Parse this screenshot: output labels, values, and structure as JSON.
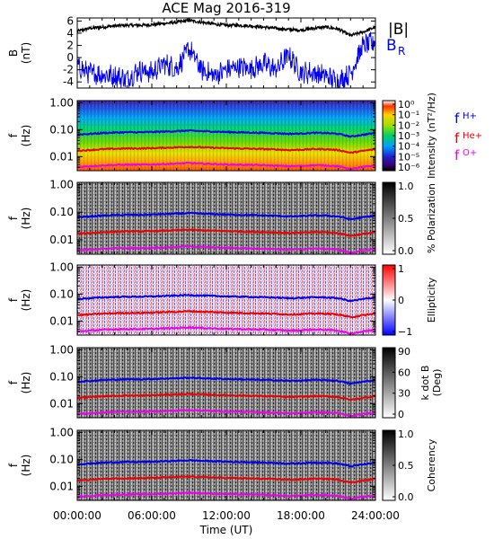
{
  "title": "ACE Mag 2016-319",
  "colors": {
    "blue": "#0000ee",
    "red": "#ee0000",
    "magenta": "#ee00ee",
    "black": "#000000"
  },
  "x_axis": {
    "label": "Time (UT)",
    "ticks": [
      "00:00:00",
      "06:00:00",
      "12:00:00",
      "18:00:00",
      "24:00:00"
    ],
    "tick_hours": [
      0,
      6,
      12,
      18,
      24
    ],
    "range_hours": [
      0,
      24
    ]
  },
  "legend_b": {
    "total": "|B|",
    "radial": "B",
    "radial_sub": "R"
  },
  "legend_f": [
    {
      "base": "f",
      "sub": "H+",
      "color": "#0000ee"
    },
    {
      "base": "f",
      "sub": "He+",
      "color": "#ee0000"
    },
    {
      "base": "f",
      "sub": "O+",
      "color": "#ee00ee"
    }
  ],
  "panels": [
    {
      "id": "b",
      "ylabel": "B",
      "yunit": "(nT)",
      "ytick_labels": [
        "6",
        "4",
        "2",
        "0",
        "-2",
        "-4"
      ],
      "ytick_values": [
        6,
        4,
        2,
        0,
        -2,
        -4
      ],
      "yrange": [
        -5,
        6.5
      ]
    },
    {
      "id": "intensity",
      "ylabel": "f",
      "yunit": "(Hz)",
      "ytick_labels": [
        "1.00",
        "0.10",
        "0.01"
      ],
      "colorbar_label": "Intensity (nT²/Hz)",
      "colorbar_ticks": [
        "10⁰",
        "10⁻¹",
        "10⁻²",
        "10⁻³",
        "10⁻⁴",
        "10⁻⁵",
        "10⁻⁶"
      ]
    },
    {
      "id": "polarization",
      "ylabel": "f",
      "yunit": "(Hz)",
      "ytick_labels": [
        "1.00",
        "0.10",
        "0.01"
      ],
      "colorbar_label": "% Polarization",
      "colorbar_ticks": [
        "1.0",
        "0.5",
        "0.0"
      ]
    },
    {
      "id": "ellipticity",
      "ylabel": "f",
      "yunit": "(Hz)",
      "ytick_labels": [
        "1.00",
        "0.10",
        "0.01"
      ],
      "colorbar_label": "Ellipticity",
      "colorbar_ticks": [
        "1",
        "0",
        "−1"
      ]
    },
    {
      "id": "kdotb",
      "ylabel": "f",
      "yunit": "(Hz)",
      "ytick_labels": [
        "1.00",
        "0.10",
        "0.01"
      ],
      "colorbar_label": "k dot B",
      "colorbar_unit": "(Deg)",
      "colorbar_ticks": [
        "90",
        "60",
        "30",
        "0"
      ]
    },
    {
      "id": "coherency",
      "ylabel": "f",
      "yunit": "(Hz)",
      "ytick_labels": [
        "1.00",
        "0.10",
        "0.01"
      ],
      "colorbar_label": "Coherency",
      "colorbar_ticks": [
        "1.0",
        "0.5",
        "0.0"
      ]
    }
  ],
  "chart_data": [
    {
      "type": "line",
      "xlabel": "",
      "ylabel": "B (nT)",
      "xlim": [
        0,
        24
      ],
      "ylim": [
        -5,
        6.5
      ],
      "x": [
        0,
        1,
        2,
        3,
        4,
        5,
        6,
        7,
        8,
        9,
        10,
        11,
        12,
        13,
        14,
        15,
        16,
        17,
        18,
        19,
        20,
        21,
        22,
        23,
        24
      ],
      "series": [
        {
          "name": "|B|",
          "color": "#000000",
          "values": [
            4.3,
            4.8,
            5.0,
            5.2,
            5.3,
            5.3,
            5.4,
            5.6,
            5.8,
            6.1,
            5.8,
            5.5,
            5.3,
            5.3,
            5.2,
            5.0,
            4.8,
            4.6,
            4.5,
            4.8,
            5.0,
            4.7,
            3.6,
            4.2,
            5.0
          ]
        },
        {
          "name": "B_R",
          "color": "#0000ee",
          "values": [
            -1.5,
            -2.5,
            -2.8,
            -3.0,
            -3.5,
            -2.0,
            -2.5,
            -1.0,
            -1.8,
            1.5,
            -2.0,
            -3.0,
            -2.0,
            -1.5,
            -1.8,
            -1.0,
            -2.0,
            0.5,
            -2.5,
            -2.5,
            -3.0,
            -4.0,
            -2.5,
            2.0,
            2.5
          ]
        }
      ]
    },
    {
      "type": "line",
      "xlabel": "Time (UT)",
      "ylabel": "f (Hz)",
      "yscale": "log",
      "xlim": [
        0,
        24
      ],
      "ylim": [
        0.003,
        1.2
      ],
      "x": [
        0,
        1,
        2,
        3,
        4,
        5,
        6,
        7,
        8,
        9,
        10,
        11,
        12,
        13,
        14,
        15,
        16,
        17,
        18,
        19,
        20,
        21,
        22,
        23,
        24
      ],
      "series": [
        {
          "name": "f_H+",
          "color": "#0000ee",
          "values": [
            0.066,
            0.07,
            0.075,
            0.078,
            0.08,
            0.08,
            0.082,
            0.085,
            0.088,
            0.092,
            0.088,
            0.085,
            0.082,
            0.08,
            0.078,
            0.076,
            0.074,
            0.07,
            0.072,
            0.076,
            0.075,
            0.07,
            0.055,
            0.065,
            0.075
          ]
        },
        {
          "name": "f_He+",
          "color": "#ee0000",
          "values": [
            0.0165,
            0.0175,
            0.0188,
            0.0195,
            0.02,
            0.02,
            0.0205,
            0.0213,
            0.022,
            0.023,
            0.022,
            0.0213,
            0.0205,
            0.02,
            0.0195,
            0.019,
            0.0185,
            0.0175,
            0.018,
            0.019,
            0.0188,
            0.0175,
            0.0138,
            0.0163,
            0.0188
          ]
        },
        {
          "name": "f_O+",
          "color": "#ee00ee",
          "values": [
            0.0041,
            0.0044,
            0.0047,
            0.0049,
            0.005,
            0.005,
            0.0051,
            0.0053,
            0.0055,
            0.0058,
            0.0055,
            0.0053,
            0.0051,
            0.005,
            0.0049,
            0.0048,
            0.0046,
            0.0044,
            0.0045,
            0.0048,
            0.0047,
            0.0044,
            0.0034,
            0.0041,
            0.0047
          ]
        }
      ]
    }
  ]
}
